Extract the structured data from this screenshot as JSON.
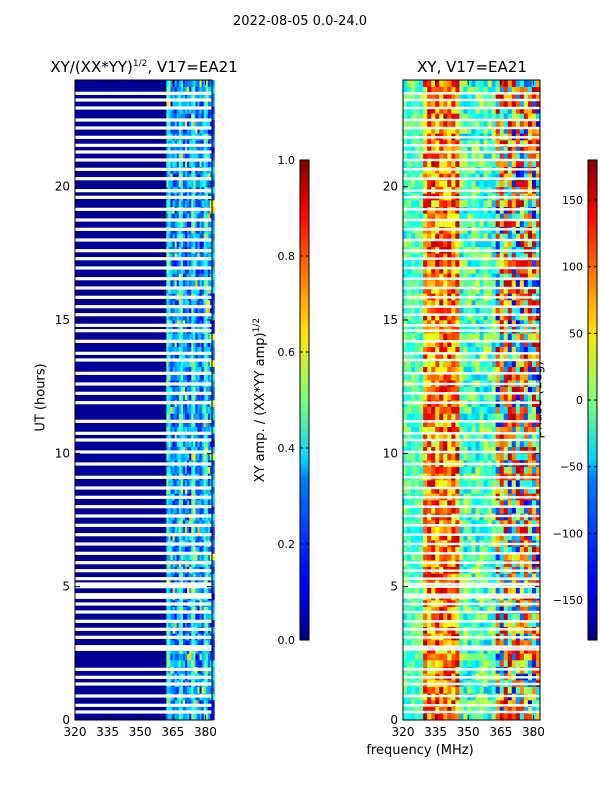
{
  "suptitle": "2022-08-05 0.0-24.0",
  "panels": [
    {
      "title": "XY/(XX*YY)¹ᐟ², V17=EA21",
      "title_main": "XY/(XX*YY)",
      "title_sup": "1/2",
      "title_rest": ", V17=EA21"
    },
    {
      "title": "XY, V17=EA21"
    }
  ],
  "colorbars": [
    {
      "label_main": "XY amp. / (XX*YY amp)",
      "label_sup": "1/2",
      "ticks": [
        "0.0",
        "0.2",
        "0.4",
        "0.6",
        "0.8",
        "1.0"
      ],
      "range": [
        0,
        1
      ],
      "tick_values": [
        0.0,
        0.2,
        0.4,
        0.6,
        0.8,
        1.0
      ]
    },
    {
      "label": "phase (deg)",
      "ticks": [
        "−150",
        "−100",
        "−50",
        "0",
        "50",
        "100",
        "150"
      ],
      "range": [
        -180,
        180
      ],
      "tick_values": [
        -150,
        -100,
        -50,
        0,
        50,
        100,
        150
      ]
    }
  ],
  "chart_data": [
    {
      "type": "heatmap",
      "title": "XY/(XX*YY)^1/2, V17=EA21",
      "xlabel": "",
      "ylabel": "UT (hours)",
      "xlim": [
        320,
        383
      ],
      "ylim": [
        0,
        24
      ],
      "xticks": [
        320,
        335,
        350,
        365,
        380
      ],
      "yticks": [
        0,
        5,
        10,
        15,
        20
      ],
      "xtick_labels": [
        "320",
        "335",
        "350",
        "365",
        "380"
      ],
      "ytick_labels": [
        "0",
        "5",
        "10",
        "15",
        "20"
      ],
      "colormap": "jet",
      "vmin": 0,
      "vmax": 1,
      "description_values": {
        "background": 0.02,
        "band_362_383_MHz": [
          0.25,
          0.5
        ]
      }
    },
    {
      "type": "heatmap",
      "title": "XY, V17=EA21",
      "xlabel": "frequency (MHz)",
      "ylabel": "",
      "xlim": [
        320,
        383
      ],
      "ylim": [
        0,
        24
      ],
      "xticks": [
        320,
        335,
        350,
        365,
        380
      ],
      "yticks": [
        0,
        5,
        10,
        15,
        20
      ],
      "xtick_labels": [
        "320",
        "335",
        "350",
        "365",
        "380"
      ],
      "ytick_labels": [
        "0",
        "5",
        "10",
        "15",
        "20"
      ],
      "colormap": "jet",
      "vmin": -180,
      "vmax": 180,
      "units": "deg"
    }
  ],
  "flagged_hours": [
    0.3,
    0.55,
    0.9,
    1.35,
    1.6,
    1.9,
    2.65,
    2.75,
    3.1,
    3.4,
    3.7,
    4.05,
    4.35,
    4.6,
    4.7,
    5.0,
    5.1,
    5.3,
    5.6,
    5.9,
    6.25,
    6.6,
    6.95,
    7.3,
    7.65,
    8.0,
    8.35,
    8.7,
    9.1,
    9.6,
    10.05,
    10.5,
    10.75,
    11.2,
    11.9,
    12.25,
    12.6,
    13.0,
    13.5,
    13.75,
    14.2,
    14.6,
    14.8,
    15.2,
    15.5,
    15.85,
    16.2,
    16.55,
    16.95,
    17.3,
    17.6,
    18.0,
    18.4,
    18.75,
    19.15,
    19.6,
    19.85,
    20.3,
    20.65,
    21.0,
    21.3,
    21.55,
    21.85,
    22.2,
    22.5,
    22.95,
    23.25,
    23.5
  ],
  "xlabel_shared": "frequency (MHz)",
  "ylabel_shared": "UT (hours)"
}
